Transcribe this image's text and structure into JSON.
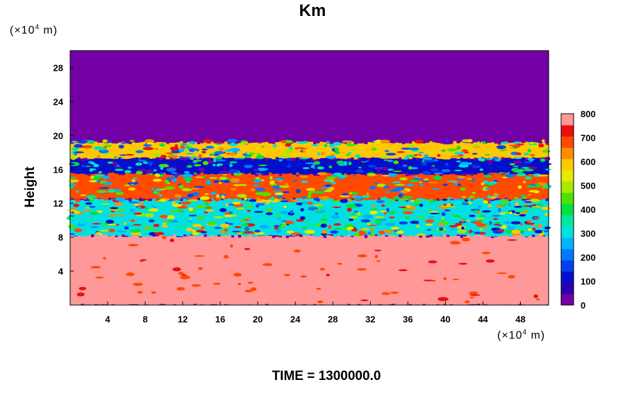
{
  "chart_data": {
    "type": "heatmap",
    "title": "Km",
    "ylabel": "Height",
    "x_unit_prefix": "(×10",
    "x_unit_exp": "4",
    "x_unit_suffix": " m)",
    "y_unit_prefix": "(×10",
    "y_unit_exp": "4",
    "y_unit_suffix": " m)",
    "footer": "TIME = 1300000.0",
    "xlim": [
      0,
      51
    ],
    "ylim": [
      0,
      30
    ],
    "x_ticks": [
      "4",
      "8",
      "12",
      "16",
      "20",
      "24",
      "28",
      "32",
      "36",
      "40",
      "44",
      "48"
    ],
    "y_ticks": [
      "4",
      "8",
      "12",
      "16",
      "20",
      "24",
      "28"
    ],
    "colorbar": {
      "min": 0,
      "max": 800,
      "ticks": [
        "0",
        "100",
        "200",
        "300",
        "400",
        "500",
        "600",
        "700",
        "800"
      ],
      "levels": [
        0,
        50,
        100,
        150,
        200,
        250,
        300,
        350,
        400,
        450,
        500,
        550,
        600,
        650,
        700,
        750,
        800
      ],
      "colors": [
        "#7200a4",
        "#2a00b0",
        "#0010cc",
        "#0040f0",
        "#0078ff",
        "#00b4ff",
        "#00e0e0",
        "#00e8a0",
        "#00e040",
        "#50e000",
        "#a8e800",
        "#e8e800",
        "#ffc800",
        "#ff8c00",
        "#ff4a00",
        "#e81010",
        "#ff9898"
      ]
    },
    "bands": [
      {
        "from": 0,
        "to": 8.2,
        "value": 800,
        "description": "high values throughout lower layer with scattered red patches"
      },
      {
        "from": 8.2,
        "to": 12.5,
        "value": 300,
        "description": "mixed, patchy"
      },
      {
        "from": 12.5,
        "to": 15.5,
        "value": 700,
        "description": "dominant high band"
      },
      {
        "from": 15.5,
        "to": 17.3,
        "value": 100,
        "description": "low/gap region"
      },
      {
        "from": 17.3,
        "to": 19.2,
        "value": 600,
        "description": "upper high band"
      },
      {
        "from": 19.2,
        "to": 30,
        "value": 0,
        "description": "zero above"
      }
    ]
  }
}
